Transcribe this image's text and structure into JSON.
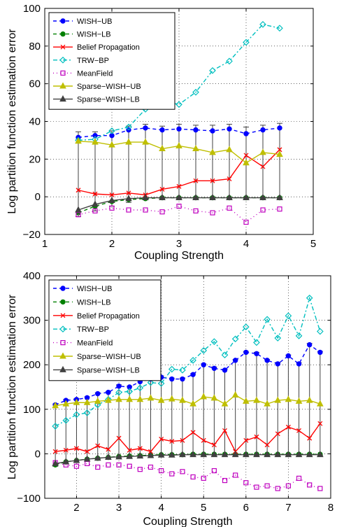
{
  "charts": [
    {
      "type": "line",
      "xlabel": "Coupling Strength",
      "ylabel": "Log partition function estimation error",
      "xlim": [
        1,
        5
      ],
      "ylim": [
        -20,
        100
      ],
      "xticks": [
        1,
        2,
        3,
        4,
        5
      ],
      "yticks": [
        -20,
        0,
        20,
        40,
        60,
        80,
        100
      ],
      "grid": true,
      "legend_position": "top-left",
      "series": [
        {
          "name": "WISH−UB",
          "color": "#0000ff",
          "dash": "5,4",
          "marker": "circle",
          "x": [
            1.5,
            1.75,
            2.0,
            2.25,
            2.5,
            2.75,
            3.0,
            3.25,
            3.5,
            3.75,
            4.0,
            4.25,
            4.5
          ],
          "y": [
            31.5,
            32.5,
            32.5,
            35.5,
            36.5,
            35.5,
            36.0,
            35.5,
            35.0,
            36.0,
            33.5,
            35.5,
            36.5
          ]
        },
        {
          "name": "WISH−LB",
          "color": "#008000",
          "dash": "5,4",
          "marker": "circle",
          "x": [
            1.5,
            1.75,
            2.0,
            2.25,
            2.5,
            2.75,
            3.0,
            3.25,
            3.5,
            3.75,
            4.0,
            4.25,
            4.5
          ],
          "y": [
            -8.5,
            -5.0,
            -2.5,
            -1.5,
            -1.0,
            -0.5,
            -0.5,
            -0.5,
            -0.5,
            -0.5,
            -0.5,
            -0.5,
            -0.5
          ]
        },
        {
          "name": "Belief Propagation",
          "color": "#ff0000",
          "dash": "",
          "marker": "x",
          "x": [
            1.5,
            1.75,
            2.0,
            2.25,
            2.5,
            2.75,
            3.0,
            3.25,
            3.5,
            3.75,
            4.0,
            4.25,
            4.5
          ],
          "y": [
            3.5,
            1.5,
            1.0,
            2.0,
            1.0,
            4.0,
            5.5,
            8.5,
            8.5,
            9.5,
            22.0,
            16.0,
            25.0
          ]
        },
        {
          "name": "TRW−BP",
          "color": "#00bfbf",
          "dash": "6,3,2,3",
          "marker": "diamond",
          "x": [
            1.5,
            1.75,
            2.0,
            2.25,
            2.5,
            2.75,
            3.0,
            3.25,
            3.5,
            3.75,
            4.0,
            4.25,
            4.5
          ],
          "y": [
            30.0,
            30.5,
            35.0,
            37.0,
            46.5,
            51.0,
            49.0,
            55.5,
            67.0,
            72.0,
            82.0,
            91.5,
            89.5
          ]
        },
        {
          "name": "MeanField",
          "color": "#bf00bf",
          "dash": "1,4",
          "marker": "square",
          "x": [
            1.5,
            1.75,
            2.0,
            2.25,
            2.5,
            2.75,
            3.0,
            3.25,
            3.5,
            3.75,
            4.0,
            4.25,
            4.5
          ],
          "y": [
            -9.5,
            -7.5,
            -6.0,
            -7.0,
            -7.0,
            -8.0,
            -5.0,
            -7.5,
            -8.5,
            -6.0,
            -13.5,
            -7.0,
            -6.5
          ]
        },
        {
          "name": "Sparse−WISH−UB",
          "color": "#bfbf00",
          "dash": "",
          "marker": "triangle",
          "x": [
            1.5,
            1.75,
            2.0,
            2.25,
            2.5,
            2.75,
            3.0,
            3.25,
            3.5,
            3.75,
            4.0,
            4.25,
            4.5
          ],
          "y": [
            29.5,
            29.0,
            27.5,
            29.0,
            29.0,
            25.5,
            27.0,
            25.5,
            23.5,
            25.0,
            18.0,
            23.5,
            22.5
          ]
        },
        {
          "name": "Sparse−WISH−LB",
          "color": "#404040",
          "dash": "",
          "marker": "triangle",
          "x": [
            1.5,
            1.75,
            2.0,
            2.25,
            2.5,
            2.75,
            3.0,
            3.25,
            3.5,
            3.75,
            4.0,
            4.25,
            4.5
          ],
          "y": [
            -7.0,
            -4.0,
            -2.0,
            -1.0,
            -0.5,
            -0.5,
            -0.5,
            -0.5,
            -0.5,
            -0.5,
            -0.5,
            -0.5,
            -0.5
          ]
        }
      ],
      "errorbars": {
        "color": "#404040",
        "x": [
          1.5,
          1.75,
          2.0,
          2.25,
          2.5,
          2.75,
          3.0,
          3.25,
          3.5,
          3.75,
          4.0,
          4.25,
          4.5
        ],
        "lower": [
          -10.5,
          -7.5,
          -5.0,
          -3.0,
          -1.5,
          -1.0,
          -1.0,
          -1.0,
          -1.0,
          -1.0,
          -1.0,
          -1.0,
          -1.0
        ],
        "upper": [
          34.5,
          34.5,
          35.0,
          37.5,
          38.5,
          37.5,
          38.5,
          38.0,
          38.0,
          38.5,
          37.0,
          38.0,
          39.0
        ]
      }
    },
    {
      "type": "line",
      "xlabel": "Coupling Strength",
      "ylabel": "Log partition function estimation error",
      "xlim": [
        1.25,
        8
      ],
      "ylim": [
        -100,
        400
      ],
      "xticks": [
        2,
        3,
        4,
        5,
        6,
        7,
        8
      ],
      "yticks": [
        -100,
        0,
        100,
        200,
        300,
        400
      ],
      "grid": true,
      "legend_position": "top-left",
      "series": [
        {
          "name": "WISH−UB",
          "color": "#0000ff",
          "dash": "5,4",
          "marker": "circle",
          "x": [
            1.5,
            1.75,
            2.0,
            2.25,
            2.5,
            2.75,
            3.0,
            3.25,
            3.5,
            3.75,
            4.0,
            4.25,
            4.5,
            4.75,
            5.0,
            5.25,
            5.5,
            5.75,
            6.0,
            6.25,
            6.5,
            6.75,
            7.0,
            7.25,
            7.5,
            7.75
          ],
          "y": [
            110,
            120,
            122,
            126,
            135,
            138,
            152,
            150,
            162,
            168,
            172,
            168,
            168,
            178,
            200,
            192,
            188,
            210,
            228,
            225,
            210,
            202,
            220,
            202,
            245,
            228
          ]
        },
        {
          "name": "WISH−LB",
          "color": "#008000",
          "dash": "5,4",
          "marker": "circle",
          "x": [
            1.5,
            1.75,
            2.0,
            2.25,
            2.5,
            2.75,
            3.0,
            3.25,
            3.5,
            3.75,
            4.0,
            4.25,
            4.5,
            4.75,
            5.0,
            5.25,
            5.5,
            5.75,
            6.0,
            6.25,
            6.5,
            6.75,
            7.0,
            7.25,
            7.5,
            7.75
          ],
          "y": [
            -25,
            -18,
            -15,
            -12,
            -10,
            -8,
            -6,
            -5,
            -4,
            -3,
            -2,
            -2,
            -2,
            -1,
            -1,
            -1,
            -1,
            -1,
            -1,
            -1,
            -1,
            -1,
            -1,
            -1,
            -1,
            -1
          ]
        },
        {
          "name": "Belief Propagation",
          "color": "#ff0000",
          "dash": "",
          "marker": "x",
          "x": [
            1.5,
            1.75,
            2.0,
            2.25,
            2.5,
            2.75,
            3.0,
            3.25,
            3.5,
            3.75,
            4.0,
            4.25,
            4.5,
            4.75,
            5.0,
            5.25,
            5.5,
            5.75,
            6.0,
            6.25,
            6.5,
            6.75,
            7.0,
            7.25,
            7.5,
            7.75
          ],
          "y": [
            5,
            8,
            12,
            5,
            18,
            10,
            35,
            8,
            12,
            5,
            33,
            28,
            30,
            48,
            30,
            20,
            52,
            5,
            30,
            38,
            20,
            45,
            60,
            52,
            35,
            68
          ]
        },
        {
          "name": "TRW−BP",
          "color": "#00bfbf",
          "dash": "6,3,2,3",
          "marker": "diamond",
          "x": [
            1.5,
            1.75,
            2.0,
            2.25,
            2.5,
            2.75,
            3.0,
            3.25,
            3.5,
            3.75,
            4.0,
            4.25,
            4.5,
            4.75,
            5.0,
            5.25,
            5.5,
            5.75,
            6.0,
            6.25,
            6.5,
            6.75,
            7.0,
            7.25,
            7.5,
            7.75
          ],
          "y": [
            62,
            75,
            88,
            92,
            110,
            122,
            138,
            140,
            148,
            160,
            158,
            190,
            188,
            210,
            232,
            252,
            222,
            258,
            285,
            250,
            302,
            260,
            310,
            265,
            350,
            275
          ]
        },
        {
          "name": "MeanField",
          "color": "#bf00bf",
          "dash": "1,4",
          "marker": "square",
          "x": [
            1.5,
            1.75,
            2.0,
            2.25,
            2.5,
            2.75,
            3.0,
            3.25,
            3.5,
            3.75,
            4.0,
            4.25,
            4.5,
            4.75,
            5.0,
            5.25,
            5.5,
            5.75,
            6.0,
            6.25,
            6.5,
            6.75,
            7.0,
            7.25,
            7.5,
            7.75
          ],
          "y": [
            -20,
            -25,
            -28,
            -22,
            -30,
            -25,
            -25,
            -28,
            -35,
            -30,
            -38,
            -45,
            -40,
            -52,
            -55,
            -38,
            -60,
            -48,
            -65,
            -75,
            -72,
            -78,
            -72,
            -55,
            -70,
            -78
          ]
        },
        {
          "name": "Sparse−WISH−UB",
          "color": "#bfbf00",
          "dash": "",
          "marker": "triangle",
          "x": [
            1.5,
            1.75,
            2.0,
            2.25,
            2.5,
            2.75,
            3.0,
            3.25,
            3.5,
            3.75,
            4.0,
            4.25,
            4.5,
            4.75,
            5.0,
            5.25,
            5.5,
            5.75,
            6.0,
            6.25,
            6.5,
            6.75,
            7.0,
            7.25,
            7.5,
            7.75
          ],
          "y": [
            108,
            112,
            115,
            115,
            118,
            120,
            122,
            122,
            122,
            125,
            120,
            123,
            120,
            112,
            128,
            125,
            112,
            132,
            118,
            120,
            112,
            120,
            122,
            118,
            120,
            112
          ]
        },
        {
          "name": "Sparse−WISH−LB",
          "color": "#404040",
          "dash": "",
          "marker": "triangle",
          "x": [
            1.5,
            1.75,
            2.0,
            2.25,
            2.5,
            2.75,
            3.0,
            3.25,
            3.5,
            3.75,
            4.0,
            4.25,
            4.5,
            4.75,
            5.0,
            5.25,
            5.5,
            5.75,
            6.0,
            6.25,
            6.5,
            6.75,
            7.0,
            7.25,
            7.5,
            7.75
          ],
          "y": [
            -22,
            -18,
            -15,
            -12,
            -10,
            -8,
            -7,
            -6,
            -5,
            -4,
            -3,
            -3,
            -2,
            -2,
            -2,
            -2,
            -2,
            -2,
            -2,
            -2,
            -2,
            -2,
            -2,
            -2,
            -2,
            -2
          ]
        }
      ],
      "errorbars": {
        "color": "#404040",
        "x": [
          1.5,
          1.75,
          2.0,
          2.25,
          2.5,
          2.75,
          3.0,
          3.25,
          3.5,
          3.75,
          4.0,
          4.25,
          4.5,
          4.75,
          5.0,
          5.25,
          5.5,
          5.75,
          6.0,
          6.25,
          6.5,
          6.75,
          7.0,
          7.25,
          7.5,
          7.75
        ],
        "lower": [
          -28,
          -22,
          -18,
          -15,
          -12,
          -10,
          -9,
          -8,
          -6,
          -5,
          -4,
          -4,
          -3,
          -3,
          -3,
          -3,
          -3,
          -3,
          -3,
          -3,
          -3,
          -3,
          -3,
          -3,
          -3,
          -3
        ],
        "upper": [
          112,
          122,
          124,
          128,
          137,
          140,
          155,
          152,
          165,
          170,
          175,
          170,
          170,
          180,
          202,
          195,
          190,
          212,
          230,
          228,
          212,
          205,
          222,
          205,
          248,
          230
        ]
      }
    }
  ],
  "chart_data": [
    {
      "type": "line",
      "xlabel": "Coupling Strength",
      "ylabel": "Log partition function estimation error",
      "xlim": [
        1,
        5
      ],
      "ylim": [
        -20,
        100
      ],
      "series_names": [
        "WISH−UB",
        "WISH−LB",
        "Belief Propagation",
        "TRW−BP",
        "MeanField",
        "Sparse−WISH−UB",
        "Sparse−WISH−LB"
      ]
    },
    {
      "type": "line",
      "xlabel": "Coupling Strength",
      "ylabel": "Log partition function estimation error",
      "xlim": [
        1.25,
        8
      ],
      "ylim": [
        -100,
        400
      ],
      "series_names": [
        "WISH−UB",
        "WISH−LB",
        "Belief Propagation",
        "TRW−BP",
        "MeanField",
        "Sparse−WISH−UB",
        "Sparse−WISH−LB"
      ]
    }
  ]
}
